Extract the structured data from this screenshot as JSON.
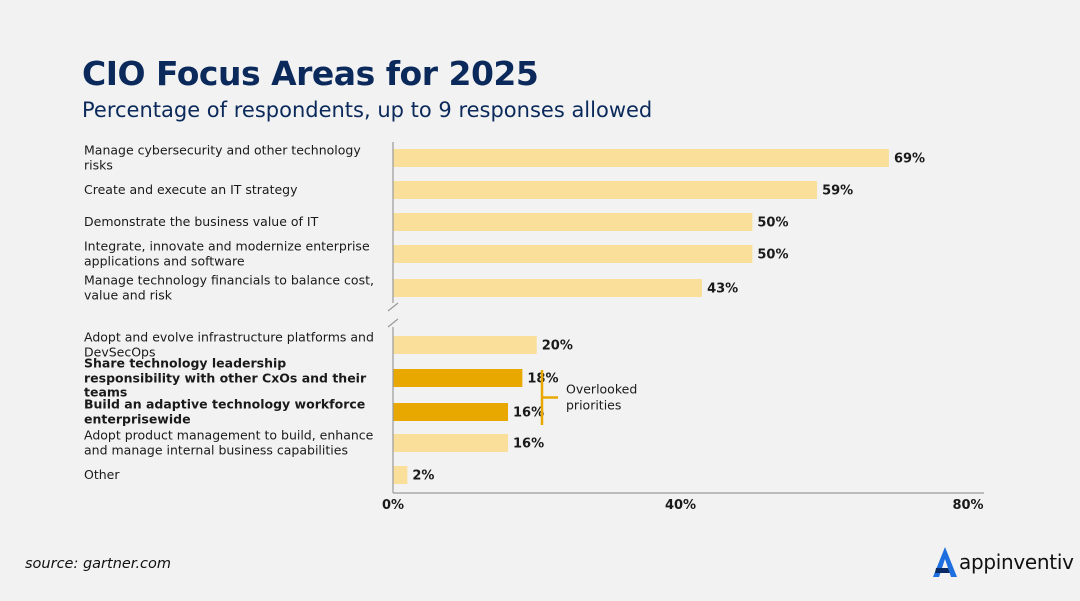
{
  "header": {
    "title": "CIO Focus Areas for 2025",
    "subtitle": "Percentage of respondents, up to 9 responses allowed"
  },
  "chart_data": {
    "type": "bar",
    "orientation": "horizontal",
    "title": "CIO Focus Areas for 2025",
    "subtitle": "Percentage of respondents, up to 9 responses allowed",
    "xlabel": "",
    "ylabel": "",
    "xlim": [
      0,
      80
    ],
    "axis_break": true,
    "x_ticks": [
      "0%",
      "40%",
      "80%"
    ],
    "categories": [
      "Manage cybersecurity and other technology risks",
      "Create and execute an IT strategy",
      "Demonstrate the business value of IT",
      "Integrate, innovate and modernize enterprise applications and software",
      "Manage technology financials to balance cost, value and risk",
      "Adopt and evolve infrastructure platforms and DevSecOps",
      "Share technology leadership responsibility with other CxOs and their teams",
      "Build an adaptive technology workforce enterprisewide",
      "Adopt product management to build, enhance and manage internal business capabilities",
      "Other"
    ],
    "values": [
      69,
      59,
      50,
      50,
      43,
      20,
      18,
      16,
      16,
      2
    ],
    "value_labels": [
      "69%",
      "59%",
      "50%",
      "50%",
      "43%",
      "20%",
      "18%",
      "16%",
      "16%",
      "2%"
    ],
    "highlighted": [
      false,
      false,
      false,
      false,
      false,
      false,
      true,
      true,
      false,
      false
    ],
    "annotation": "Overlooked priorities",
    "colors": {
      "bar": "#f9df9a",
      "highlight": "#e9a800",
      "axis": "#9a9a9a",
      "bracket": "#e9a800",
      "text": "#1a1a1a",
      "title": "#0b2a5b"
    }
  },
  "footer": {
    "source": "source: gartner.com",
    "brand": "appinventiv",
    "brand_color": "#1d6fe0",
    "brand_icon": "logo-icon"
  }
}
